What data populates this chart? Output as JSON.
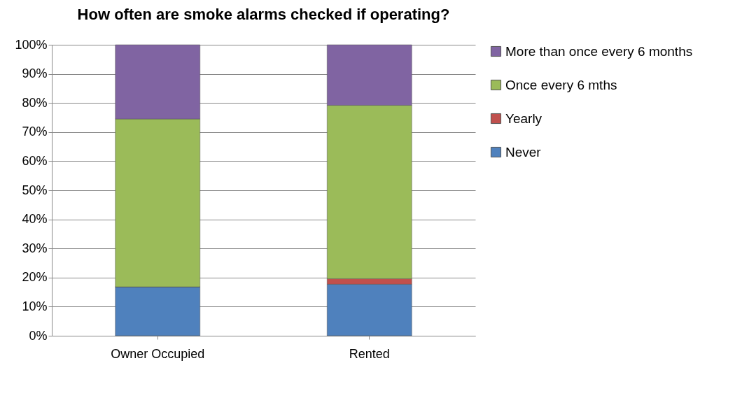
{
  "chart_data": {
    "type": "bar",
    "title": "How often are smoke alarms checked if operating?",
    "categories": [
      "Owner Occupied",
      "Rented"
    ],
    "stacked": true,
    "series": [
      {
        "name": "Never",
        "color": "#4f81bd",
        "values": [
          16.8,
          17.7
        ]
      },
      {
        "name": "Yearly",
        "color": "#c0504d",
        "values": [
          0,
          1.9
        ]
      },
      {
        "name": "Once every 6 mths",
        "color": "#9bbb59",
        "values": [
          57.7,
          59.6
        ]
      },
      {
        "name": "More than once every 6 months",
        "color": "#8064a2",
        "values": [
          25.5,
          20.8
        ]
      }
    ],
    "ylim": [
      0,
      100
    ],
    "yticks": [
      {
        "value": 0,
        "label": "0%"
      },
      {
        "value": 10,
        "label": "10%"
      },
      {
        "value": 20,
        "label": "20%"
      },
      {
        "value": 30,
        "label": "30%"
      },
      {
        "value": 40,
        "label": "40%"
      },
      {
        "value": 50,
        "label": "50%"
      },
      {
        "value": 60,
        "label": "60%"
      },
      {
        "value": 70,
        "label": "70%"
      },
      {
        "value": 80,
        "label": "80%"
      },
      {
        "value": 90,
        "label": "90%"
      },
      {
        "value": 100,
        "label": "100%"
      }
    ],
    "grid": "y",
    "legend": "right"
  }
}
